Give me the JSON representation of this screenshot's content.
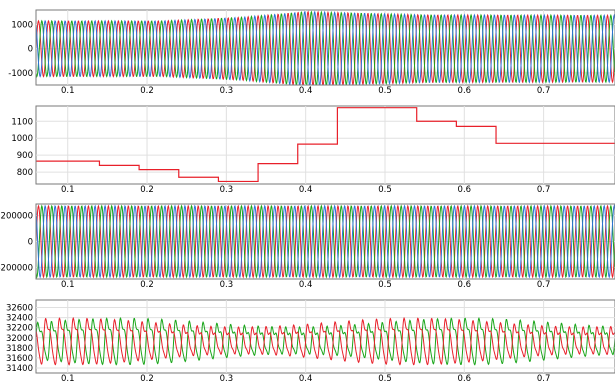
{
  "chart_data": [
    {
      "type": "line",
      "title": "",
      "xlabel": "",
      "ylabel": "",
      "xlim": [
        0.06,
        0.79
      ],
      "ylim": [
        -1500,
        1600
      ],
      "xticks": [
        "0.1",
        "0.2",
        "0.3",
        "0.4",
        "0.5",
        "0.6",
        "0.7"
      ],
      "yticks": [
        "1000",
        "0",
        "-1000"
      ],
      "grid": true,
      "signal": "three-phase sine, ~58 cycles over the window",
      "amplitude_points": {
        "x": [
          0.06,
          0.22,
          0.32,
          0.4,
          0.55,
          0.79
        ],
        "y": [
          1150,
          1150,
          1300,
          1530,
          1400,
          1380
        ]
      },
      "series": [
        {
          "color": "#e8202a"
        },
        {
          "color": "#1aa61a"
        },
        {
          "color": "#2f6fd8"
        }
      ]
    },
    {
      "type": "line",
      "title": "",
      "xlabel": "",
      "ylabel": "",
      "xlim": [
        0.06,
        0.79
      ],
      "ylim": [
        730,
        1190
      ],
      "xticks": [
        "0.1",
        "0.2",
        "0.3",
        "0.4",
        "0.5",
        "0.6",
        "0.7"
      ],
      "yticks": [
        "1100",
        "1000",
        "900",
        "800"
      ],
      "grid": true,
      "step": true,
      "x": [
        0.06,
        0.14,
        0.14,
        0.19,
        0.19,
        0.24,
        0.24,
        0.29,
        0.29,
        0.34,
        0.34,
        0.39,
        0.39,
        0.44,
        0.44,
        0.54,
        0.54,
        0.59,
        0.59,
        0.64,
        0.64,
        0.79
      ],
      "y": [
        865,
        865,
        840,
        840,
        815,
        815,
        770,
        770,
        745,
        745,
        850,
        850,
        965,
        965,
        1180,
        1180,
        1100,
        1100,
        1070,
        1070,
        970,
        970
      ],
      "series": [
        {
          "color": "#e8202a"
        }
      ]
    },
    {
      "type": "line",
      "title": "",
      "xlabel": "",
      "ylabel": "",
      "xlim": [
        0.06,
        0.79
      ],
      "ylim": [
        -290000,
        290000
      ],
      "xticks": [
        "0.1",
        "0.2",
        "0.3",
        "0.4",
        "0.5",
        "0.6",
        "0.7"
      ],
      "yticks": [
        "200000",
        "0",
        "-200000"
      ],
      "grid": true,
      "signal": "three-phase sine, ~58 cycles, constant amplitude",
      "amplitude": 275000,
      "series": [
        {
          "color": "#e8202a"
        },
        {
          "color": "#1aa61a"
        },
        {
          "color": "#2f6fd8"
        }
      ]
    },
    {
      "type": "line",
      "title": "",
      "xlabel": "",
      "ylabel": "",
      "xlim": [
        0.06,
        0.79
      ],
      "ylim": [
        31300,
        32750
      ],
      "xticks": [
        "0.1",
        "0.2",
        "0.3",
        "0.4",
        "0.5",
        "0.6",
        "0.7"
      ],
      "yticks": [
        "32600",
        "32400",
        "32200",
        "32000",
        "31800",
        "31600",
        "31400"
      ],
      "grid": true,
      "signal": "ripple about ~31950, ~42 cycles, peaks ~32600, troughs ~31400",
      "series": [
        {
          "color": "#1aa61a"
        },
        {
          "color": "#e8202a"
        }
      ]
    }
  ]
}
